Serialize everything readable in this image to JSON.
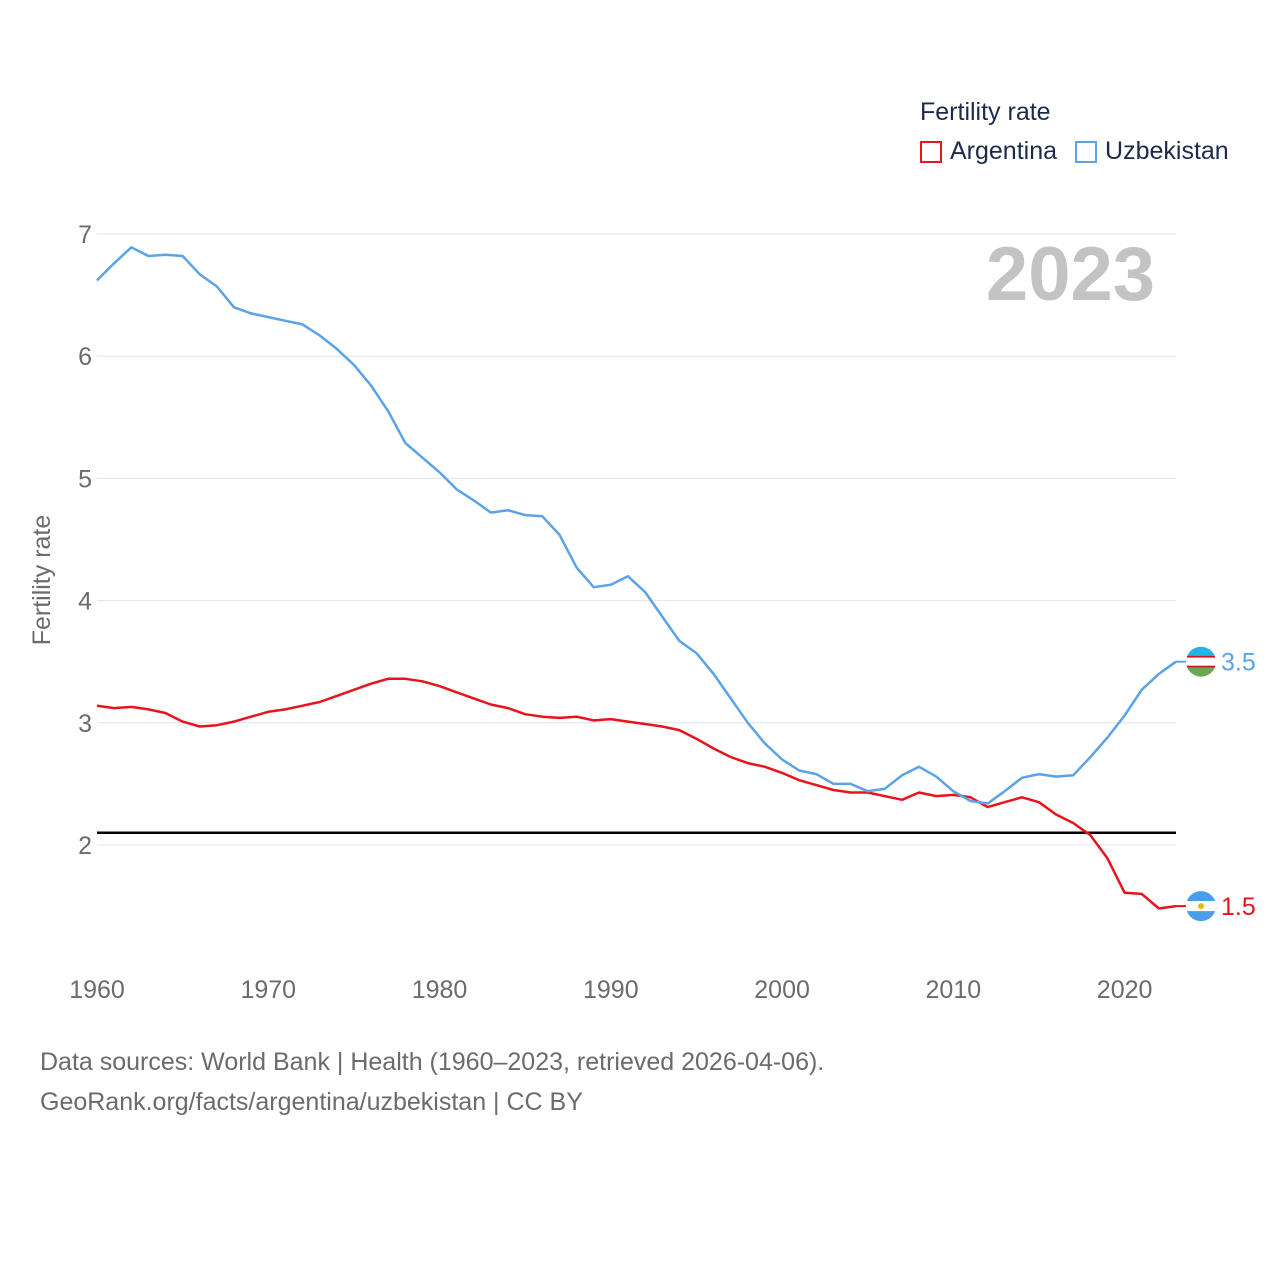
{
  "legend": {
    "title": "Fertility rate",
    "items": [
      {
        "label": "Argentina",
        "color": "#e8141c"
      },
      {
        "label": "Uzbekistan",
        "color": "#5ba3e6"
      }
    ]
  },
  "year_overlay": "2023",
  "end_labels": {
    "uzbekistan": "3.5",
    "argentina": "1.5"
  },
  "footer": {
    "line1": "Data sources: World Bank | Health (1960–2023, retrieved 2026-04-06).",
    "line2": "GeoRank.org/facts/argentina/uzbekistan | CC BY"
  },
  "chart_data": {
    "type": "line",
    "title": "Fertility rate",
    "xlabel": "",
    "ylabel": "Fertility rate",
    "xlim": [
      1960,
      2023
    ],
    "ylim": [
      1.2,
      7
    ],
    "x_ticks": [
      1960,
      1970,
      1980,
      1990,
      2000,
      2010,
      2020
    ],
    "y_ticks": [
      2,
      3,
      4,
      5,
      6,
      7
    ],
    "reference_line": {
      "y": 2.1,
      "color": "#000000"
    },
    "x": [
      1960,
      1961,
      1962,
      1963,
      1964,
      1965,
      1966,
      1967,
      1968,
      1969,
      1970,
      1971,
      1972,
      1973,
      1974,
      1975,
      1976,
      1977,
      1978,
      1979,
      1980,
      1981,
      1982,
      1983,
      1984,
      1985,
      1986,
      1987,
      1988,
      1989,
      1990,
      1991,
      1992,
      1993,
      1994,
      1995,
      1996,
      1997,
      1998,
      1999,
      2000,
      2001,
      2002,
      2003,
      2004,
      2005,
      2006,
      2007,
      2008,
      2009,
      2010,
      2011,
      2012,
      2013,
      2014,
      2015,
      2016,
      2017,
      2018,
      2019,
      2020,
      2021,
      2022,
      2023
    ],
    "series": [
      {
        "name": "Argentina",
        "color": "#e8141c",
        "values": [
          3.14,
          3.12,
          3.13,
          3.11,
          3.08,
          3.01,
          2.97,
          2.98,
          3.01,
          3.05,
          3.09,
          3.11,
          3.14,
          3.17,
          3.22,
          3.27,
          3.32,
          3.36,
          3.36,
          3.34,
          3.3,
          3.25,
          3.2,
          3.15,
          3.12,
          3.07,
          3.05,
          3.04,
          3.05,
          3.02,
          3.03,
          3.01,
          2.99,
          2.97,
          2.94,
          2.87,
          2.79,
          2.72,
          2.67,
          2.64,
          2.59,
          2.53,
          2.49,
          2.45,
          2.43,
          2.43,
          2.4,
          2.37,
          2.43,
          2.4,
          2.41,
          2.39,
          2.31,
          2.35,
          2.39,
          2.35,
          2.25,
          2.18,
          2.08,
          1.89,
          1.61,
          1.6,
          1.48,
          1.5
        ]
      },
      {
        "name": "Uzbekistan",
        "color": "#5ba3e6",
        "values": [
          6.62,
          6.76,
          6.89,
          6.82,
          6.83,
          6.82,
          6.67,
          6.57,
          6.4,
          6.35,
          6.32,
          6.29,
          6.26,
          6.17,
          6.06,
          5.93,
          5.76,
          5.55,
          5.29,
          5.17,
          5.05,
          4.91,
          4.82,
          4.72,
          4.74,
          4.7,
          4.69,
          4.54,
          4.27,
          4.11,
          4.13,
          4.2,
          4.07,
          3.87,
          3.67,
          3.57,
          3.4,
          3.2,
          3.0,
          2.83,
          2.7,
          2.61,
          2.58,
          2.5,
          2.5,
          2.44,
          2.46,
          2.57,
          2.64,
          2.56,
          2.44,
          2.36,
          2.34,
          2.44,
          2.55,
          2.58,
          2.56,
          2.57,
          2.72,
          2.88,
          3.06,
          3.27,
          3.4,
          3.5
        ]
      }
    ]
  }
}
